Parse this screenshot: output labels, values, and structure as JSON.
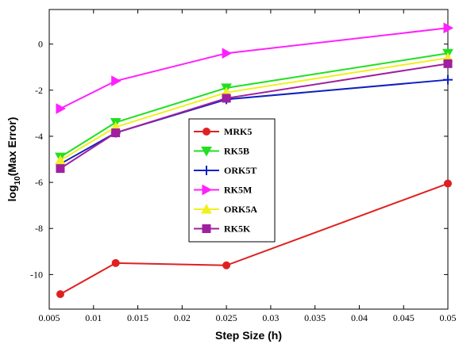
{
  "chart_data": {
    "type": "line",
    "xlabel": "Step Size (h)",
    "ylabel": {
      "main": "log",
      "sub": "10",
      "rest": "(Max Error)"
    },
    "xlim": [
      0.005,
      0.05
    ],
    "ylim": [
      -11.5,
      1.5
    ],
    "xticks": [
      "0.005",
      "0.01",
      "0.015",
      "0.02",
      "0.025",
      "0.03",
      "0.035",
      "0.04",
      "0.045",
      "0.05"
    ],
    "xtick_values": [
      0.005,
      0.01,
      0.015,
      0.02,
      0.025,
      0.03,
      0.035,
      0.04,
      0.045,
      0.05
    ],
    "yticks": [
      "0",
      "-2",
      "-4",
      "-6",
      "-8",
      "-10"
    ],
    "ytick_values": [
      0,
      -2,
      -4,
      -6,
      -8,
      -10
    ],
    "grid": false,
    "legend_position": "center",
    "x": [
      0.00625,
      0.0125,
      0.025,
      0.05
    ],
    "series": [
      {
        "name": "MRK5",
        "color": "#e02020",
        "marker": "circle",
        "values": [
          -10.85,
          -9.5,
          -9.6,
          -6.05
        ]
      },
      {
        "name": "RK5B",
        "color": "#20e020",
        "marker": "triangle-down",
        "values": [
          -4.9,
          -3.4,
          -1.9,
          -0.4
        ]
      },
      {
        "name": "ORK5T",
        "color": "#1020c0",
        "marker": "plus",
        "values": [
          -5.2,
          -3.85,
          -2.4,
          -1.55
        ]
      },
      {
        "name": "RK5M",
        "color": "#ff20ff",
        "marker": "triangle-right",
        "values": [
          -2.8,
          -1.6,
          -0.4,
          0.7
        ]
      },
      {
        "name": "ORK5A",
        "color": "#f0f020",
        "marker": "triangle-up",
        "values": [
          -5.05,
          -3.6,
          -2.1,
          -0.6
        ]
      },
      {
        "name": "RK5K",
        "color": "#a020a0",
        "marker": "square",
        "values": [
          -5.4,
          -3.85,
          -2.35,
          -0.85
        ]
      }
    ]
  }
}
